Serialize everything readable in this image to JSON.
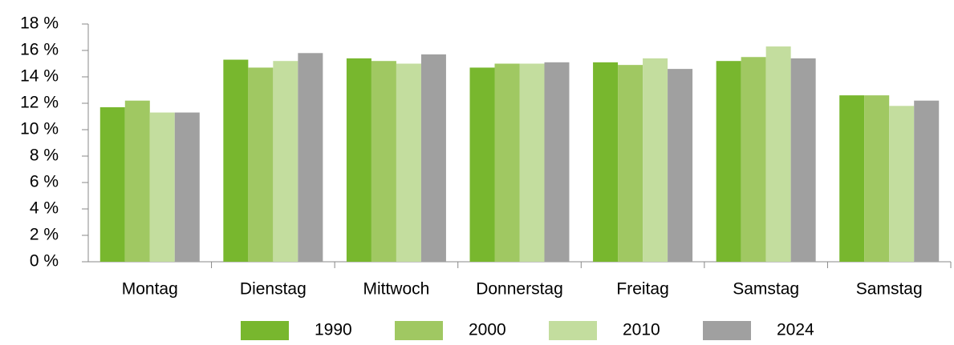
{
  "chart_data": {
    "type": "bar",
    "categories": [
      "Montag",
      "Dienstag",
      "Mittwoch",
      "Donnerstag",
      "Freitag",
      "Samstag",
      "Samstag"
    ],
    "series": [
      {
        "name": "1990",
        "color": "#78b72e",
        "values": [
          11.7,
          15.3,
          15.4,
          14.7,
          15.1,
          15.2,
          12.6
        ]
      },
      {
        "name": "2000",
        "color": "#a0c862",
        "values": [
          12.2,
          14.7,
          15.2,
          15.0,
          14.9,
          15.5,
          12.6
        ]
      },
      {
        "name": "2010",
        "color": "#c3dd9e",
        "values": [
          11.3,
          15.2,
          15.0,
          15.0,
          15.4,
          16.3,
          11.8
        ]
      },
      {
        "name": "2024",
        "color": "#a0a0a0",
        "values": [
          11.3,
          15.8,
          15.7,
          15.1,
          14.6,
          15.4,
          12.2
        ]
      }
    ],
    "ylim": [
      0,
      18
    ],
    "yticks": [
      {
        "value": 0,
        "label": "0 %"
      },
      {
        "value": 2,
        "label": "2 %"
      },
      {
        "value": 4,
        "label": "4 %"
      },
      {
        "value": 6,
        "label": "6 %"
      },
      {
        "value": 8,
        "label": "8 %"
      },
      {
        "value": 10,
        "label": "10 %"
      },
      {
        "value": 12,
        "label": "12 %"
      },
      {
        "value": 14,
        "label": "14 %"
      },
      {
        "value": 16,
        "label": "16 %"
      },
      {
        "value": 18,
        "label": "18 %"
      }
    ],
    "grid": false,
    "legend": "bottom"
  }
}
